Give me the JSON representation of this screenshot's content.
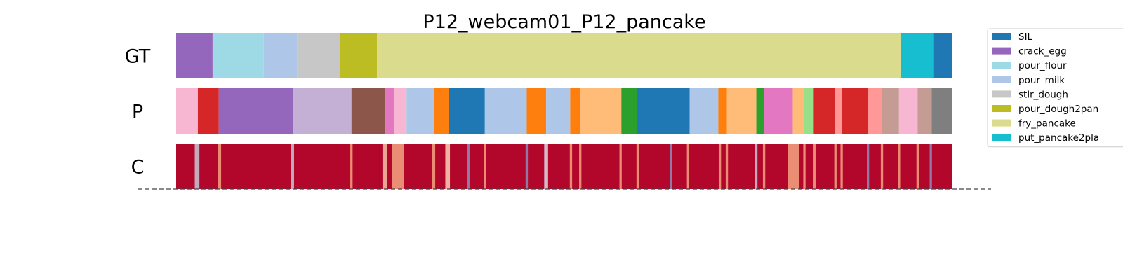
{
  "chart_data": {
    "type": "segmentation-bars",
    "title": "P12_webcam01_P12_pancake",
    "x_extent": [
      0,
      100
    ],
    "rows": [
      {
        "label": "GT",
        "segments": [
          {
            "start": 0.0,
            "end": 4.7,
            "color": "#9467bd"
          },
          {
            "start": 4.7,
            "end": 11.3,
            "color": "#9edae5"
          },
          {
            "start": 11.3,
            "end": 15.6,
            "color": "#aec7e8"
          },
          {
            "start": 15.6,
            "end": 21.1,
            "color": "#c7c7c7"
          },
          {
            "start": 21.1,
            "end": 25.9,
            "color": "#bcbd22"
          },
          {
            "start": 25.9,
            "end": 93.4,
            "color": "#dbdb8d"
          },
          {
            "start": 93.4,
            "end": 97.7,
            "color": "#17becf"
          },
          {
            "start": 97.7,
            "end": 100.0,
            "color": "#1f77b4"
          }
        ]
      },
      {
        "label": "P",
        "segments": [
          {
            "start": 0.0,
            "end": 2.8,
            "color": "#f7b6d2"
          },
          {
            "start": 2.8,
            "end": 5.5,
            "color": "#d62728"
          },
          {
            "start": 5.5,
            "end": 15.1,
            "color": "#9467bd"
          },
          {
            "start": 15.1,
            "end": 22.6,
            "color": "#c5b0d5"
          },
          {
            "start": 22.6,
            "end": 26.9,
            "color": "#8c564b"
          },
          {
            "start": 26.9,
            "end": 28.1,
            "color": "#e377c2"
          },
          {
            "start": 28.1,
            "end": 29.7,
            "color": "#f7b6d2"
          },
          {
            "start": 29.7,
            "end": 33.2,
            "color": "#aec7e8"
          },
          {
            "start": 33.2,
            "end": 35.2,
            "color": "#ff7f0e"
          },
          {
            "start": 35.2,
            "end": 39.8,
            "color": "#1f77b4"
          },
          {
            "start": 39.8,
            "end": 45.2,
            "color": "#aec7e8"
          },
          {
            "start": 45.2,
            "end": 47.7,
            "color": "#ff7f0e"
          },
          {
            "start": 47.7,
            "end": 50.8,
            "color": "#aec7e8"
          },
          {
            "start": 50.8,
            "end": 52.1,
            "color": "#ff7f0e"
          },
          {
            "start": 52.1,
            "end": 57.4,
            "color": "#ffbb78"
          },
          {
            "start": 57.4,
            "end": 59.4,
            "color": "#2ca02c"
          },
          {
            "start": 59.4,
            "end": 66.2,
            "color": "#1f77b4"
          },
          {
            "start": 66.2,
            "end": 69.9,
            "color": "#aec7e8"
          },
          {
            "start": 69.9,
            "end": 71.0,
            "color": "#ff7f0e"
          },
          {
            "start": 71.0,
            "end": 74.8,
            "color": "#ffbb78"
          },
          {
            "start": 74.8,
            "end": 75.8,
            "color": "#2ca02c"
          },
          {
            "start": 75.8,
            "end": 79.5,
            "color": "#e377c2"
          },
          {
            "start": 79.5,
            "end": 80.9,
            "color": "#ffbb78"
          },
          {
            "start": 80.9,
            "end": 82.2,
            "color": "#98df8a"
          },
          {
            "start": 82.2,
            "end": 85.0,
            "color": "#d62728"
          },
          {
            "start": 85.0,
            "end": 85.8,
            "color": "#ff9896"
          },
          {
            "start": 85.8,
            "end": 89.2,
            "color": "#d62728"
          },
          {
            "start": 89.2,
            "end": 91.0,
            "color": "#ff9896"
          },
          {
            "start": 91.0,
            "end": 93.2,
            "color": "#c49c94"
          },
          {
            "start": 93.2,
            "end": 95.6,
            "color": "#f7b6d2"
          },
          {
            "start": 95.6,
            "end": 97.4,
            "color": "#c49c94"
          },
          {
            "start": 97.4,
            "end": 100.0,
            "color": "#7f7f7f"
          }
        ]
      },
      {
        "label": "C",
        "base_color": "#b2062a",
        "colormap": "RdBu",
        "marks": [
          {
            "pos": 2.7,
            "width": 0.6,
            "color": "#c8c8d8"
          },
          {
            "pos": 5.6,
            "width": 0.4,
            "color": "#f3a481"
          },
          {
            "pos": 15.0,
            "width": 0.4,
            "color": "#c8c8d8"
          },
          {
            "pos": 22.6,
            "width": 0.3,
            "color": "#f3a481"
          },
          {
            "pos": 26.9,
            "width": 0.6,
            "color": "#f6c1a6"
          },
          {
            "pos": 28.6,
            "width": 1.5,
            "color": "#f4a582"
          },
          {
            "pos": 33.2,
            "width": 0.4,
            "color": "#f3a481"
          },
          {
            "pos": 35.0,
            "width": 0.6,
            "color": "#fbd0b9"
          },
          {
            "pos": 37.7,
            "width": 0.3,
            "color": "#8c8cc0"
          },
          {
            "pos": 39.8,
            "width": 0.3,
            "color": "#f3a481"
          },
          {
            "pos": 45.2,
            "width": 0.3,
            "color": "#8c8cc0"
          },
          {
            "pos": 47.7,
            "width": 0.5,
            "color": "#d8dce8"
          },
          {
            "pos": 50.9,
            "width": 0.3,
            "color": "#f3a481"
          },
          {
            "pos": 52.1,
            "width": 0.3,
            "color": "#f3a481"
          },
          {
            "pos": 57.3,
            "width": 0.3,
            "color": "#f3a481"
          },
          {
            "pos": 59.5,
            "width": 0.3,
            "color": "#f3a481"
          },
          {
            "pos": 63.8,
            "width": 0.3,
            "color": "#8c8cc0"
          },
          {
            "pos": 66.0,
            "width": 0.3,
            "color": "#f3a481"
          },
          {
            "pos": 70.1,
            "width": 0.3,
            "color": "#f3a481"
          },
          {
            "pos": 71.0,
            "width": 0.3,
            "color": "#f3a481"
          },
          {
            "pos": 74.8,
            "width": 0.3,
            "color": "#c8c8d8"
          },
          {
            "pos": 75.8,
            "width": 0.3,
            "color": "#f3a481"
          },
          {
            "pos": 79.6,
            "width": 1.4,
            "color": "#f4a582"
          },
          {
            "pos": 81.0,
            "width": 0.3,
            "color": "#f3a481"
          },
          {
            "pos": 82.3,
            "width": 0.3,
            "color": "#f3a481"
          },
          {
            "pos": 85.0,
            "width": 0.3,
            "color": "#f3a481"
          },
          {
            "pos": 85.8,
            "width": 0.3,
            "color": "#f3a481"
          },
          {
            "pos": 89.2,
            "width": 0.3,
            "color": "#8c8cc0"
          },
          {
            "pos": 91.0,
            "width": 0.3,
            "color": "#f3a481"
          },
          {
            "pos": 93.2,
            "width": 0.3,
            "color": "#f3a481"
          },
          {
            "pos": 95.6,
            "width": 0.3,
            "color": "#f3a481"
          },
          {
            "pos": 97.3,
            "width": 0.3,
            "color": "#8c8cc0"
          }
        ]
      }
    ],
    "legend": {
      "placement": "right",
      "entries": [
        {
          "label": "SIL",
          "color": "#1f77b4"
        },
        {
          "label": "crack_egg",
          "color": "#9467bd"
        },
        {
          "label": "pour_flour",
          "color": "#9edae5"
        },
        {
          "label": "pour_milk",
          "color": "#aec7e8"
        },
        {
          "label": "stir_dough",
          "color": "#c7c7c7"
        },
        {
          "label": "pour_dough2pan",
          "color": "#bcbd22"
        },
        {
          "label": "fry_pancake",
          "color": "#dbdb8d"
        },
        {
          "label": "put_pancake2pla",
          "color": "#17becf"
        }
      ]
    },
    "baseline": {
      "style": "dashed",
      "color": "#444444"
    }
  }
}
